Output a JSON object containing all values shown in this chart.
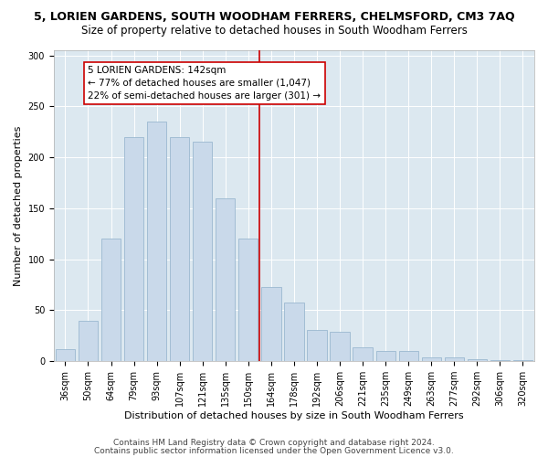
{
  "title1": "5, LORIEN GARDENS, SOUTH WOODHAM FERRERS, CHELMSFORD, CM3 7AQ",
  "title2": "Size of property relative to detached houses in South Woodham Ferrers",
  "xlabel": "Distribution of detached houses by size in South Woodham Ferrers",
  "ylabel": "Number of detached properties",
  "categories": [
    "36sqm",
    "50sqm",
    "64sqm",
    "79sqm",
    "93sqm",
    "107sqm",
    "121sqm",
    "135sqm",
    "150sqm",
    "164sqm",
    "178sqm",
    "192sqm",
    "206sqm",
    "221sqm",
    "235sqm",
    "249sqm",
    "263sqm",
    "277sqm",
    "292sqm",
    "306sqm",
    "320sqm"
  ],
  "values": [
    12,
    40,
    120,
    220,
    235,
    220,
    215,
    160,
    120,
    73,
    58,
    31,
    29,
    14,
    10,
    10,
    4,
    4,
    2,
    1,
    1
  ],
  "bar_color": "#c9d9ea",
  "bar_edge_color": "#9ab8d0",
  "vline_x_idx": 8.5,
  "vline_color": "#cc0000",
  "annotation_text": "5 LORIEN GARDENS: 142sqm\n← 77% of detached houses are smaller (1,047)\n22% of semi-detached houses are larger (301) →",
  "annotation_box_color": "#ffffff",
  "annotation_box_edge": "#cc0000",
  "ylim": [
    0,
    305
  ],
  "yticks": [
    0,
    50,
    100,
    150,
    200,
    250,
    300
  ],
  "footer1": "Contains HM Land Registry data © Crown copyright and database right 2024.",
  "footer2": "Contains public sector information licensed under the Open Government Licence v3.0.",
  "fig_bg_color": "#ffffff",
  "plot_bg_color": "#dce8f0",
  "title1_fontsize": 9,
  "title2_fontsize": 8.5,
  "xlabel_fontsize": 8,
  "ylabel_fontsize": 8,
  "tick_fontsize": 7,
  "annot_fontsize": 7.5,
  "footer_fontsize": 6.5
}
